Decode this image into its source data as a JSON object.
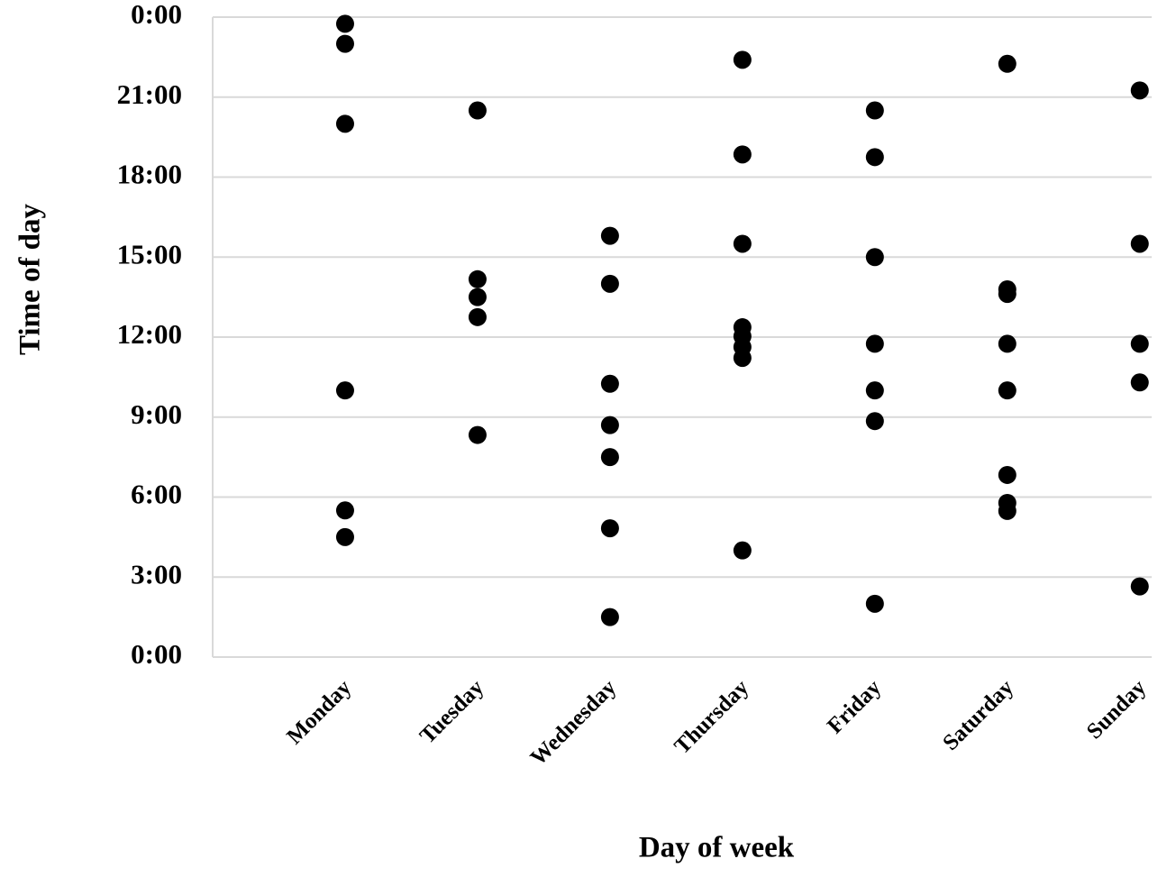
{
  "chart_data": {
    "type": "scatter",
    "x_label": "Day of week",
    "y_label": "Time of day",
    "categories": [
      "Monday",
      "Tuesday",
      "Wednesday",
      "Thursday",
      "Friday",
      "Saturday",
      "Sunday"
    ],
    "values": [
      [
        23.75,
        23,
        20,
        10,
        5.5,
        4.5
      ],
      [
        20.5,
        14.17,
        13.5,
        12.75,
        8.33
      ],
      [
        15.8,
        14,
        10.25,
        8.7,
        7.5,
        4.83,
        1.5
      ],
      [
        22.4,
        18.85,
        15.5,
        12.37,
        12.03,
        11.63,
        11.22,
        4
      ],
      [
        20.5,
        18.75,
        15,
        11.75,
        10,
        8.85,
        2
      ],
      [
        22.25,
        13.79,
        13.62,
        11.75,
        10,
        6.83,
        5.78,
        5.48
      ],
      [
        21.25,
        15.5,
        11.75,
        10.3,
        2.65
      ]
    ],
    "color": "#000000",
    "ylim": [
      0,
      24
    ],
    "yticks": [
      {
        "value": 0,
        "label": "0:00"
      },
      {
        "value": 3,
        "label": "3:00"
      },
      {
        "value": 6,
        "label": "6:00"
      },
      {
        "value": 9,
        "label": "9:00"
      },
      {
        "value": 12,
        "label": "12:00"
      },
      {
        "value": 15,
        "label": "15:00"
      },
      {
        "value": 18,
        "label": "18:00"
      },
      {
        "value": 21,
        "label": "21:00"
      },
      {
        "value": 24,
        "label": "0:00"
      }
    ],
    "grid": true
  }
}
